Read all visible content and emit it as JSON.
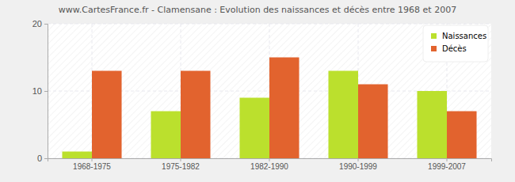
{
  "chart_data": {
    "type": "bar",
    "title": "www.CartesFrance.fr - Clamensane : Evolution des naissances et décès entre 1968 et 2007",
    "categories": [
      "1968-1975",
      "1975-1982",
      "1982-1990",
      "1990-1999",
      "1999-2007"
    ],
    "series": [
      {
        "name": "Naissances",
        "color": "#bbe02d",
        "values": [
          1,
          7,
          9,
          13,
          10
        ]
      },
      {
        "name": "Décès",
        "color": "#e2632e",
        "values": [
          13,
          13,
          15,
          11,
          7
        ]
      }
    ],
    "ylim": [
      0,
      20
    ],
    "yticks": [
      0,
      10,
      20
    ],
    "grid": true,
    "legend": "top-right"
  }
}
